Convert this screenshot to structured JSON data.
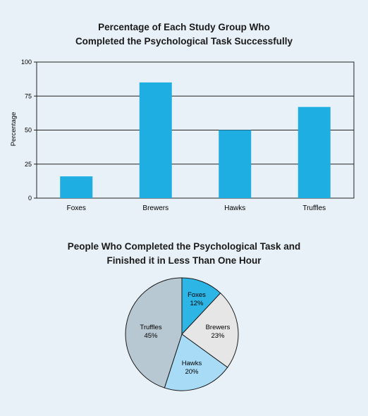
{
  "chart_data": [
    {
      "type": "bar",
      "title_lines": [
        "Percentage of Each Study Group Who",
        "Completed the Psychological Task Successfully"
      ],
      "ylabel": "Percentage",
      "xlabel": "",
      "categories": [
        "Foxes",
        "Brewers",
        "Hawks",
        "Truffles"
      ],
      "values": [
        16,
        85,
        50,
        67
      ],
      "ylim": [
        0,
        100
      ],
      "yticks": [
        "0",
        "25",
        "50",
        "75",
        "100"
      ],
      "grid": true,
      "color": "#1eaee2"
    },
    {
      "type": "pie",
      "title_lines": [
        "People Who Completed the Psychological Task and",
        "Finished it in Less Than One Hour"
      ],
      "slices": [
        {
          "label": "Foxes",
          "pct_label": "12%",
          "value": 12,
          "color": "#2db5e6"
        },
        {
          "label": "Brewers",
          "pct_label": "23%",
          "value": 23,
          "color": "#e6e6e6"
        },
        {
          "label": "Hawks",
          "pct_label": "20%",
          "value": 20,
          "color": "#a7dbf6"
        },
        {
          "label": "Truffles",
          "pct_label": "45%",
          "value": 45,
          "color": "#b8c8d2"
        }
      ]
    }
  ]
}
